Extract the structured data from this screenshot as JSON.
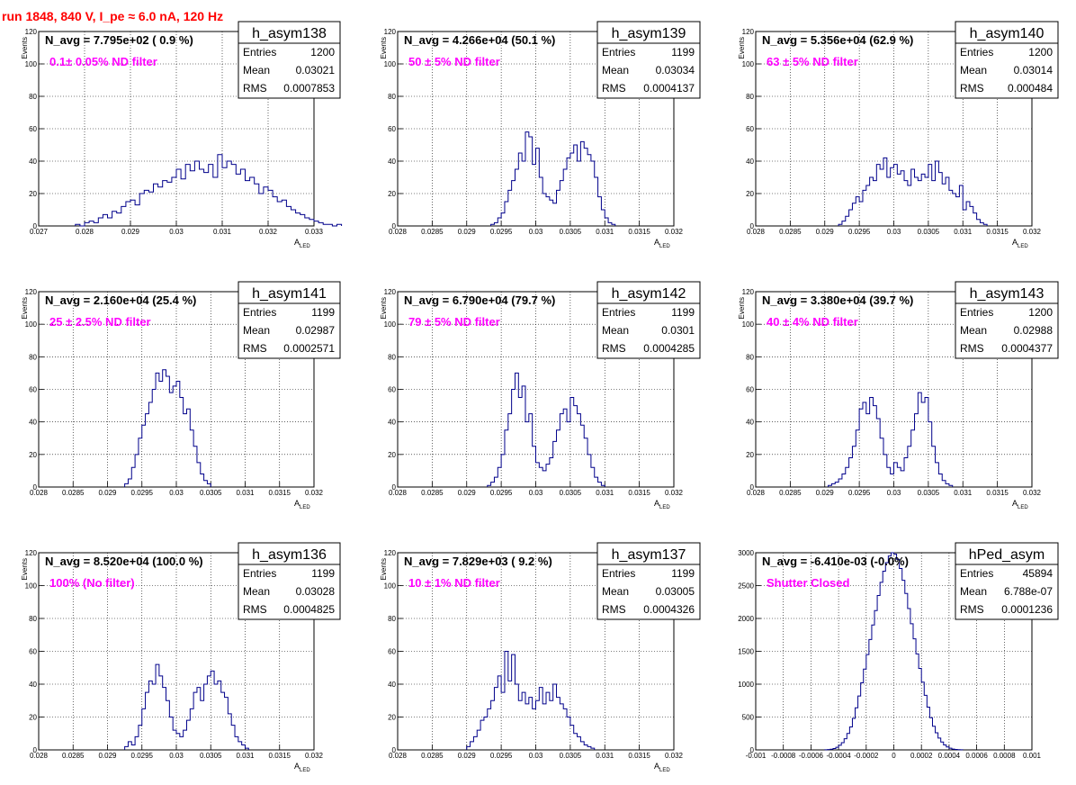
{
  "page": {
    "title": "run 1848,   840 V, I_pe ≈ 6.0 nA, 120 Hz"
  },
  "colors": {
    "histogram": "#00008b",
    "annotation": "#ff00ff",
    "title": "#ff0000",
    "grid": "#000000"
  },
  "chart_data": [
    {
      "type": "bar",
      "name": "h_asym138",
      "navg": "N_avg = 7.795e+02 ( 0.9 %)",
      "annotation": "0.1± 0.05% ND filter",
      "stats": {
        "entries": "1200",
        "mean": "0.03021",
        "rms": "0.0007853"
      },
      "xlabel": "A_LED",
      "ylabel": "Events",
      "xlim": [
        0.027,
        0.033
      ],
      "ylim": [
        0,
        120
      ],
      "xticks": [
        0.027,
        0.028,
        0.029,
        0.03,
        0.031,
        0.032,
        0.033
      ],
      "xtick_labels": [
        "0.027",
        "0.028",
        "0.029",
        "0.03",
        "0.031",
        "0.032",
        "0.033"
      ],
      "yticks": [
        0,
        20,
        40,
        60,
        80,
        100,
        120
      ],
      "ytick_labels": [
        "0",
        "20",
        "40",
        "60",
        "80",
        "100",
        "120"
      ],
      "grid": true,
      "bins": {
        "x0": 0.0278,
        "width": 0.0001,
        "values": [
          1,
          0,
          2,
          3,
          2,
          5,
          7,
          5,
          9,
          8,
          12,
          15,
          16,
          13,
          20,
          22,
          21,
          26,
          24,
          28,
          27,
          30,
          35,
          29,
          38,
          34,
          40,
          35,
          33,
          38,
          30,
          44,
          36,
          40,
          38,
          32,
          35,
          28,
          30,
          26,
          20,
          24,
          22,
          18,
          15,
          16,
          12,
          10,
          8,
          7,
          5,
          4,
          3,
          2,
          1,
          1,
          0,
          1
        ]
      }
    },
    {
      "type": "bar",
      "name": "h_asym139",
      "navg": "N_avg = 4.266e+04 (50.1 %)",
      "annotation": "50 ± 5% ND filter",
      "stats": {
        "entries": "1199",
        "mean": "0.03034",
        "rms": "0.0004137"
      },
      "xlabel": "A_LED",
      "ylabel": "Events",
      "xlim": [
        0.028,
        0.032
      ],
      "ylim": [
        0,
        120
      ],
      "xticks": [
        0.028,
        0.0285,
        0.029,
        0.0295,
        0.03,
        0.0305,
        0.031,
        0.0315,
        0.032
      ],
      "xtick_labels": [
        "0.028",
        "0.0285",
        "0.029",
        "0.0295",
        "0.03",
        "0.0305",
        "0.031",
        "0.0315",
        "0.032"
      ],
      "yticks": [
        0,
        20,
        40,
        60,
        80,
        100,
        120
      ],
      "ytick_labels": [
        "0",
        "20",
        "40",
        "60",
        "80",
        "100",
        "120"
      ],
      "grid": true,
      "bins": {
        "x0": 0.02935,
        "width": 5e-05,
        "values": [
          1,
          2,
          5,
          8,
          15,
          22,
          28,
          35,
          45,
          40,
          58,
          55,
          38,
          48,
          30,
          20,
          18,
          16,
          14,
          22,
          28,
          35,
          42,
          45,
          50,
          40,
          52,
          48,
          44,
          40,
          30,
          18,
          10,
          5,
          2,
          1
        ]
      }
    },
    {
      "type": "bar",
      "name": "h_asym140",
      "navg": "N_avg = 5.356e+04 (62.9 %)",
      "annotation": "63 ± 5% ND filter",
      "stats": {
        "entries": "1200",
        "mean": "0.03014",
        "rms": "0.000484"
      },
      "xlabel": "A_LED",
      "ylabel": "Events",
      "xlim": [
        0.028,
        0.032
      ],
      "ylim": [
        0,
        120
      ],
      "xticks": [
        0.028,
        0.0285,
        0.029,
        0.0295,
        0.03,
        0.0305,
        0.031,
        0.0315,
        0.032
      ],
      "xtick_labels": [
        "0.028",
        "0.0285",
        "0.029",
        "0.0295",
        "0.03",
        "0.0305",
        "0.031",
        "0.0315",
        "0.032"
      ],
      "yticks": [
        0,
        20,
        40,
        60,
        80,
        100,
        120
      ],
      "ytick_labels": [
        "0",
        "20",
        "40",
        "60",
        "80",
        "100",
        "120"
      ],
      "grid": true,
      "bins": {
        "x0": 0.0292,
        "width": 5e-05,
        "values": [
          1,
          3,
          6,
          10,
          14,
          18,
          15,
          22,
          25,
          30,
          28,
          38,
          35,
          42,
          30,
          36,
          38,
          32,
          34,
          28,
          25,
          35,
          30,
          28,
          32,
          30,
          38,
          28,
          40,
          33,
          26,
          30,
          22,
          20,
          18,
          25,
          10,
          15,
          12,
          8,
          4,
          2,
          1
        ]
      }
    },
    {
      "type": "bar",
      "name": "h_asym141",
      "navg": "N_avg = 2.160e+04 (25.4 %)",
      "annotation": "25 ± 2.5% ND filter",
      "stats": {
        "entries": "1199",
        "mean": "0.02987",
        "rms": "0.0002571"
      },
      "xlabel": "A_LED",
      "ylabel": "Events",
      "xlim": [
        0.028,
        0.032
      ],
      "ylim": [
        0,
        120
      ],
      "xticks": [
        0.028,
        0.0285,
        0.029,
        0.0295,
        0.03,
        0.0305,
        0.031,
        0.0315,
        0.032
      ],
      "xtick_labels": [
        "0.028",
        "0.0285",
        "0.029",
        "0.0295",
        "0.03",
        "0.0305",
        "0.031",
        "0.0315",
        "0.032"
      ],
      "yticks": [
        0,
        20,
        40,
        60,
        80,
        100,
        120
      ],
      "ytick_labels": [
        "0",
        "20",
        "40",
        "60",
        "80",
        "100",
        "120"
      ],
      "grid": true,
      "bins": {
        "x0": 0.02925,
        "width": 5e-05,
        "values": [
          2,
          5,
          12,
          20,
          30,
          38,
          45,
          52,
          60,
          70,
          65,
          72,
          68,
          58,
          62,
          65,
          55,
          45,
          48,
          35,
          25,
          15,
          8,
          4,
          2
        ]
      }
    },
    {
      "type": "bar",
      "name": "h_asym142",
      "navg": "N_avg = 6.790e+04 (79.7 %)",
      "annotation": "79 ± 5% ND filter",
      "stats": {
        "entries": "1199",
        "mean": "0.0301",
        "rms": "0.0004285"
      },
      "xlabel": "A_LED",
      "ylabel": "Events",
      "xlim": [
        0.028,
        0.032
      ],
      "ylim": [
        0,
        120
      ],
      "xticks": [
        0.028,
        0.0285,
        0.029,
        0.0295,
        0.03,
        0.0305,
        0.031,
        0.0315,
        0.032
      ],
      "xtick_labels": [
        "0.028",
        "0.0285",
        "0.029",
        "0.0295",
        "0.03",
        "0.0305",
        "0.031",
        "0.0315",
        "0.032"
      ],
      "yticks": [
        0,
        20,
        40,
        60,
        80,
        100,
        120
      ],
      "ytick_labels": [
        "0",
        "20",
        "40",
        "60",
        "80",
        "100",
        "120"
      ],
      "grid": true,
      "bins": {
        "x0": 0.0293,
        "width": 5e-05,
        "values": [
          1,
          3,
          6,
          12,
          20,
          35,
          45,
          60,
          70,
          55,
          62,
          40,
          45,
          25,
          15,
          12,
          10,
          14,
          18,
          28,
          35,
          45,
          48,
          40,
          55,
          50,
          45,
          38,
          30,
          20,
          12,
          6,
          3,
          1
        ]
      }
    },
    {
      "type": "bar",
      "name": "h_asym143",
      "navg": "N_avg = 3.380e+04 (39.7 %)",
      "annotation": "40 ± 4% ND filter",
      "stats": {
        "entries": "1200",
        "mean": "0.02988",
        "rms": "0.0004377"
      },
      "xlabel": "A_LED",
      "ylabel": "Events",
      "xlim": [
        0.028,
        0.032
      ],
      "ylim": [
        0,
        120
      ],
      "xticks": [
        0.028,
        0.0285,
        0.029,
        0.0295,
        0.03,
        0.0305,
        0.031,
        0.0315,
        0.032
      ],
      "xtick_labels": [
        "0.028",
        "0.0285",
        "0.029",
        "0.0295",
        "0.03",
        "0.0305",
        "0.031",
        "0.0315",
        "0.032"
      ],
      "yticks": [
        0,
        20,
        40,
        60,
        80,
        100,
        120
      ],
      "ytick_labels": [
        "0",
        "20",
        "40",
        "60",
        "80",
        "100",
        "120"
      ],
      "grid": true,
      "bins": {
        "x0": 0.02905,
        "width": 5e-05,
        "values": [
          1,
          2,
          3,
          5,
          8,
          12,
          18,
          25,
          35,
          48,
          52,
          45,
          55,
          50,
          42,
          30,
          20,
          12,
          8,
          15,
          12,
          10,
          18,
          25,
          35,
          45,
          58,
          52,
          55,
          40,
          25,
          15,
          8,
          4,
          2,
          1
        ]
      }
    },
    {
      "type": "bar",
      "name": "h_asym136",
      "navg": "N_avg = 8.520e+04 (100.0 %)",
      "annotation": "100% (No filter)",
      "stats": {
        "entries": "1199",
        "mean": "0.03028",
        "rms": "0.0004825"
      },
      "xlabel": "A_LED",
      "ylabel": "Events",
      "xlim": [
        0.028,
        0.032
      ],
      "ylim": [
        0,
        120
      ],
      "xticks": [
        0.028,
        0.0285,
        0.029,
        0.0295,
        0.03,
        0.0305,
        0.031,
        0.0315,
        0.032
      ],
      "xtick_labels": [
        "0.028",
        "0.0285",
        "0.029",
        "0.0295",
        "0.03",
        "0.0305",
        "0.031",
        "0.0315",
        "0.032"
      ],
      "yticks": [
        0,
        20,
        40,
        60,
        80,
        100,
        120
      ],
      "ytick_labels": [
        "0",
        "20",
        "40",
        "60",
        "80",
        "100",
        "120"
      ],
      "grid": true,
      "bins": {
        "x0": 0.02925,
        "width": 5e-05,
        "values": [
          2,
          5,
          3,
          8,
          15,
          25,
          35,
          42,
          40,
          52,
          45,
          38,
          30,
          20,
          12,
          10,
          8,
          12,
          18,
          25,
          35,
          38,
          30,
          40,
          45,
          48,
          40,
          42,
          35,
          32,
          22,
          15,
          8,
          5,
          3,
          1
        ]
      }
    },
    {
      "type": "bar",
      "name": "h_asym137",
      "navg": "N_avg = 7.829e+03 ( 9.2 %)",
      "annotation": "10 ± 1% ND filter",
      "stats": {
        "entries": "1199",
        "mean": "0.03005",
        "rms": "0.0004326"
      },
      "xlabel": "A_LED",
      "ylabel": "Events",
      "xlim": [
        0.028,
        0.032
      ],
      "ylim": [
        0,
        120
      ],
      "xticks": [
        0.028,
        0.0285,
        0.029,
        0.0295,
        0.03,
        0.0305,
        0.031,
        0.0315,
        0.032
      ],
      "xtick_labels": [
        "0.028",
        "0.0285",
        "0.029",
        "0.0295",
        "0.03",
        "0.0305",
        "0.031",
        "0.0315",
        "0.032"
      ],
      "yticks": [
        0,
        20,
        40,
        60,
        80,
        100,
        120
      ],
      "ytick_labels": [
        "0",
        "20",
        "40",
        "60",
        "80",
        "100",
        "120"
      ],
      "grid": true,
      "bins": {
        "x0": 0.029,
        "width": 5e-05,
        "values": [
          2,
          5,
          8,
          12,
          18,
          20,
          25,
          30,
          38,
          45,
          35,
          60,
          42,
          58,
          40,
          30,
          35,
          28,
          32,
          25,
          30,
          38,
          28,
          35,
          30,
          40,
          32,
          28,
          25,
          20,
          15,
          10,
          8,
          5,
          3,
          2,
          1
        ]
      }
    },
    {
      "type": "bar",
      "name": "hPed_asym",
      "navg": "N_avg = -6.410e-03 (-0.0%)",
      "annotation": "Shutter Closed",
      "stats": {
        "entries": "45894",
        "mean": "6.788e-07",
        "rms": "0.0001236"
      },
      "xlabel": "",
      "ylabel": "",
      "xlim": [
        -0.001,
        0.001
      ],
      "ylim": [
        0,
        3000
      ],
      "xticks": [
        -0.001,
        -0.0008,
        -0.0006,
        -0.0004,
        -0.0002,
        0,
        0.0002,
        0.0004,
        0.0006,
        0.0008,
        0.001
      ],
      "xtick_labels": [
        "-0.001",
        "-0.0008",
        "-0.0006",
        "-0.0004",
        "-0.0002",
        "0",
        "0.0002",
        "0.0004",
        "0.0006",
        "0.0008",
        "0.001"
      ],
      "yticks": [
        0,
        500,
        1000,
        1500,
        2000,
        2500,
        3000
      ],
      "ytick_labels": [
        "0",
        "500",
        "1000",
        "1500",
        "2000",
        "2500",
        "3000"
      ],
      "grid": true,
      "bins": {
        "x0": -0.0005,
        "width": 2e-05,
        "values": [
          2,
          5,
          10,
          20,
          40,
          70,
          110,
          170,
          250,
          350,
          480,
          640,
          820,
          1020,
          1230,
          1450,
          1680,
          1900,
          2120,
          2350,
          2550,
          2720,
          2850,
          2950,
          3000,
          2980,
          2900,
          2760,
          2580,
          2380,
          2150,
          1920,
          1690,
          1460,
          1240,
          1030,
          830,
          650,
          490,
          360,
          260,
          180,
          120,
          75,
          45,
          25,
          12,
          6,
          3,
          1
        ]
      }
    }
  ]
}
